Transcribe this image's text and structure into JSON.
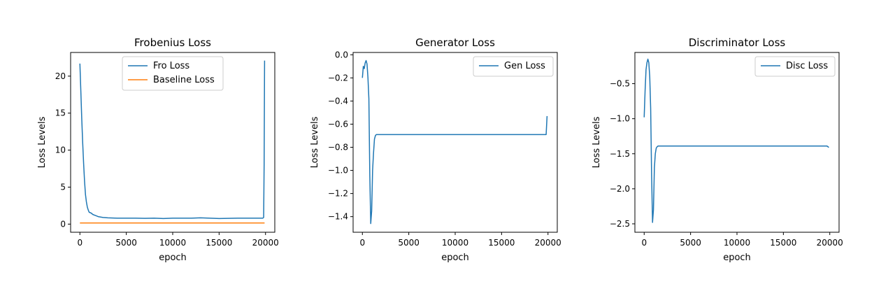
{
  "chart_data": [
    {
      "type": "line",
      "title": "Frobenius Loss",
      "xlabel": "epoch",
      "ylabel": "Loss Levels",
      "xlim": [
        -1000,
        21000
      ],
      "ylim": [
        -1.1,
        23.2
      ],
      "xticks": [
        0,
        5000,
        10000,
        15000,
        20000
      ],
      "yticks": [
        0,
        5,
        10,
        15,
        20
      ],
      "xtick_labels": [
        "0",
        "5000",
        "10000",
        "15000",
        "20000"
      ],
      "ytick_labels": [
        "0",
        "5",
        "10",
        "15",
        "20"
      ],
      "legend": "upper center",
      "series": [
        {
          "name": "Fro Loss",
          "color": "#1f77b4",
          "x": [
            0,
            100,
            200,
            300,
            400,
            500,
            600,
            700,
            800,
            900,
            1000,
            1200,
            1400,
            1600,
            1800,
            2000,
            2500,
            3000,
            4000,
            5000,
            6000,
            7000,
            8000,
            9000,
            10000,
            11000,
            12000,
            13000,
            14000,
            15000,
            16000,
            17000,
            18000,
            19000,
            19700,
            19800,
            19850,
            19900
          ],
          "y": [
            21.7,
            18.0,
            14.2,
            11.0,
            8.2,
            5.8,
            4.0,
            3.0,
            2.3,
            1.9,
            1.6,
            1.5,
            1.3,
            1.2,
            1.1,
            1.0,
            0.9,
            0.85,
            0.8,
            0.8,
            0.8,
            0.78,
            0.8,
            0.75,
            0.8,
            0.8,
            0.8,
            0.85,
            0.8,
            0.75,
            0.78,
            0.8,
            0.8,
            0.8,
            0.8,
            0.9,
            8.0,
            22.1
          ]
        },
        {
          "name": "Baseline Loss",
          "color": "#ff7f0e",
          "x": [
            0,
            19900
          ],
          "y": [
            0.15,
            0.15
          ]
        }
      ]
    },
    {
      "type": "line",
      "title": "Generator Loss",
      "xlabel": "epoch",
      "ylabel": "Loss Levels",
      "xlim": [
        -1000,
        21000
      ],
      "ylim": [
        -1.535,
        0.02
      ],
      "xticks": [
        0,
        5000,
        10000,
        15000,
        20000
      ],
      "yticks": [
        0.0,
        -0.2,
        -0.4,
        -0.6,
        -0.8,
        -1.0,
        -1.2,
        -1.4
      ],
      "xtick_labels": [
        "0",
        "5000",
        "10000",
        "15000",
        "20000"
      ],
      "ytick_labels": [
        "0.0",
        "−0.2",
        "−0.4",
        "−0.6",
        "−0.8",
        "−1.0",
        "−1.2",
        "−1.4"
      ],
      "legend": "upper right",
      "series": [
        {
          "name": "Gen Loss",
          "color": "#1f77b4",
          "x": [
            0,
            100,
            200,
            300,
            400,
            500,
            600,
            700,
            800,
            900,
            1000,
            1100,
            1200,
            1300,
            1400,
            1500,
            1700,
            2000,
            3000,
            4000,
            5000,
            6000,
            7000,
            8000,
            9000,
            10000,
            11000,
            12000,
            13000,
            14000,
            15000,
            16000,
            17000,
            18000,
            19000,
            19700,
            19800,
            19900
          ],
          "y": [
            -0.2,
            -0.1,
            -0.12,
            -0.07,
            -0.05,
            -0.08,
            -0.2,
            -0.38,
            -1.05,
            -1.46,
            -1.35,
            -1.0,
            -0.85,
            -0.73,
            -0.7,
            -0.69,
            -0.69,
            -0.69,
            -0.69,
            -0.69,
            -0.69,
            -0.69,
            -0.69,
            -0.69,
            -0.69,
            -0.69,
            -0.69,
            -0.69,
            -0.69,
            -0.69,
            -0.69,
            -0.69,
            -0.69,
            -0.69,
            -0.69,
            -0.69,
            -0.69,
            -0.53
          ]
        }
      ]
    },
    {
      "type": "line",
      "title": "Discriminator Loss",
      "xlabel": "epoch",
      "ylabel": "Loss Levels",
      "xlim": [
        -1000,
        21000
      ],
      "ylim": [
        -2.62,
        -0.055
      ],
      "xticks": [
        0,
        5000,
        10000,
        15000,
        20000
      ],
      "yticks": [
        -0.5,
        -1.0,
        -1.5,
        -2.0,
        -2.5
      ],
      "xtick_labels": [
        "0",
        "5000",
        "10000",
        "15000",
        "20000"
      ],
      "ytick_labels": [
        "−0.5",
        "−1.0",
        "−1.5",
        "−2.0",
        "−2.5"
      ],
      "legend": "upper right",
      "series": [
        {
          "name": "Disc Loss",
          "color": "#1f77b4",
          "x": [
            0,
            100,
            200,
            300,
            400,
            500,
            600,
            700,
            800,
            900,
            1000,
            1100,
            1200,
            1300,
            1400,
            1500,
            1700,
            2000,
            3000,
            5000,
            7000,
            9000,
            11000,
            13000,
            15000,
            17000,
            19000,
            19700,
            19900
          ],
          "y": [
            -0.98,
            -0.6,
            -0.3,
            -0.2,
            -0.15,
            -0.2,
            -0.4,
            -0.85,
            -1.8,
            -2.48,
            -2.3,
            -1.7,
            -1.5,
            -1.42,
            -1.4,
            -1.39,
            -1.39,
            -1.39,
            -1.39,
            -1.39,
            -1.39,
            -1.39,
            -1.39,
            -1.39,
            -1.39,
            -1.39,
            -1.39,
            -1.39,
            -1.41
          ]
        }
      ]
    }
  ]
}
